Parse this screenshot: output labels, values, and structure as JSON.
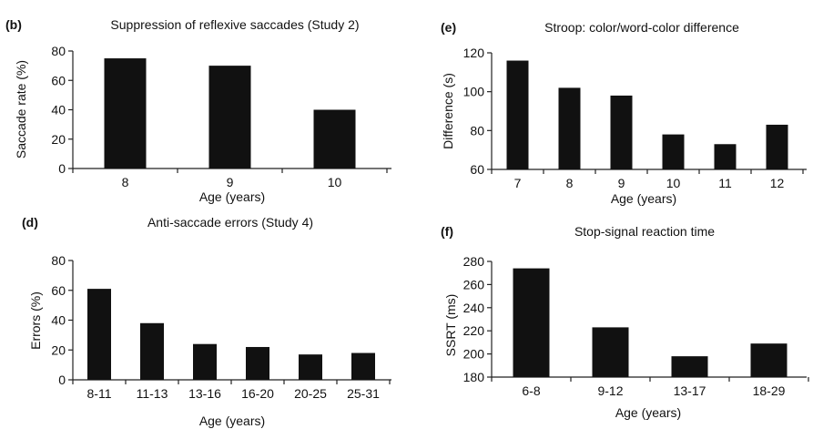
{
  "chart_data": [
    {
      "panel": "(b)",
      "type": "bar",
      "title": "Suppression of reflexive saccades (Study 2)",
      "xlabel": "Age (years)",
      "ylabel": "Saccade rate (%)",
      "categories": [
        "8",
        "9",
        "10"
      ],
      "values": [
        75,
        70,
        40
      ],
      "ylim": [
        0,
        80
      ],
      "yticks": [
        0,
        20,
        40,
        60,
        80
      ],
      "grid": false
    },
    {
      "panel": "(e)",
      "type": "bar",
      "title": "Stroop: color/word-color difference",
      "xlabel": "Age (years)",
      "ylabel": "Difference (s)",
      "categories": [
        "7",
        "8",
        "9",
        "10",
        "11",
        "12"
      ],
      "values": [
        116,
        102,
        98,
        78,
        73,
        83
      ],
      "ylim": [
        60,
        120
      ],
      "yticks": [
        60,
        80,
        100,
        120
      ],
      "grid": false
    },
    {
      "panel": "(d)",
      "type": "bar",
      "title": "Anti-saccade errors (Study 4)",
      "xlabel": "Age (years)",
      "ylabel": "Errors (%)",
      "categories": [
        "8-11",
        "11-13",
        "13-16",
        "16-20",
        "20-25",
        "25-31"
      ],
      "values": [
        61,
        38,
        24,
        22,
        17,
        18
      ],
      "ylim": [
        0,
        80
      ],
      "yticks": [
        0,
        20,
        40,
        60,
        80
      ],
      "grid": false
    },
    {
      "panel": "(f)",
      "type": "bar",
      "title": "Stop-signal reaction time",
      "xlabel": "Age (years)",
      "ylabel": "SSRT (ms)",
      "categories": [
        "6-8",
        "9-12",
        "13-17",
        "18-29"
      ],
      "values": [
        274,
        223,
        198,
        209
      ],
      "ylim": [
        180,
        280
      ],
      "yticks": [
        180,
        200,
        220,
        240,
        260,
        280
      ],
      "grid": false
    }
  ]
}
